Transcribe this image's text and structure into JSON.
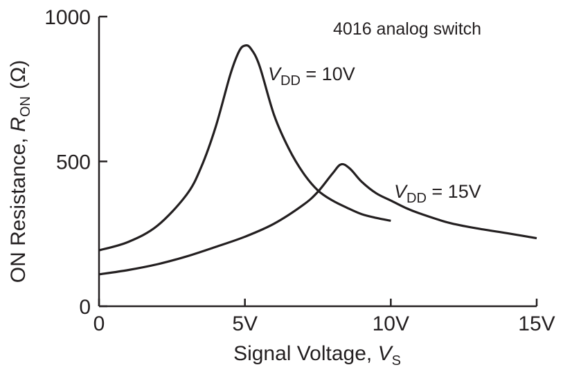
{
  "chart_data": {
    "type": "line",
    "title": "4016 analog switch",
    "xlabel": {
      "main": "Signal Voltage, ",
      "italic": "V",
      "subscript": "S"
    },
    "ylabel": {
      "main": "ON Resistance, ",
      "italic": "R",
      "subscript": "ON",
      "unit": "(Ω)"
    },
    "xlim": [
      0,
      15
    ],
    "ylim": [
      0,
      1000
    ],
    "x_ticks": [
      {
        "value": 0,
        "label": "0"
      },
      {
        "value": 5,
        "label": "5V"
      },
      {
        "value": 10,
        "label": "10V"
      },
      {
        "value": 15,
        "label": "15V"
      }
    ],
    "y_ticks": [
      {
        "value": 0,
        "label": "0"
      },
      {
        "value": 500,
        "label": "500"
      },
      {
        "value": 1000,
        "label": "1000"
      }
    ],
    "grid": false,
    "series": [
      {
        "name": "V_DD = 10V",
        "label": {
          "italic": "V",
          "subscript": "DD",
          "suffix": " = 10V"
        },
        "x": [
          0,
          1,
          2,
          3,
          3.5,
          4,
          4.5,
          4.8,
          5,
          5.2,
          5.5,
          6,
          6.5,
          7,
          7.5,
          8,
          8.5,
          9,
          9.5,
          10
        ],
        "y": [
          193,
          222,
          278,
          385,
          480,
          620,
          800,
          880,
          900,
          890,
          830,
          660,
          545,
          460,
          400,
          365,
          340,
          318,
          305,
          295
        ]
      },
      {
        "name": "V_DD = 15V",
        "label": {
          "italic": "V",
          "subscript": "DD",
          "suffix": " = 15V"
        },
        "x": [
          0,
          1,
          2,
          3,
          4,
          5,
          6,
          7,
          7.5,
          8,
          8.3,
          8.6,
          9,
          9.5,
          10,
          10.5,
          11,
          12,
          13,
          14,
          15
        ],
        "y": [
          110,
          125,
          145,
          172,
          205,
          240,
          285,
          350,
          395,
          458,
          490,
          475,
          430,
          390,
          365,
          340,
          320,
          288,
          268,
          252,
          235
        ]
      }
    ]
  }
}
